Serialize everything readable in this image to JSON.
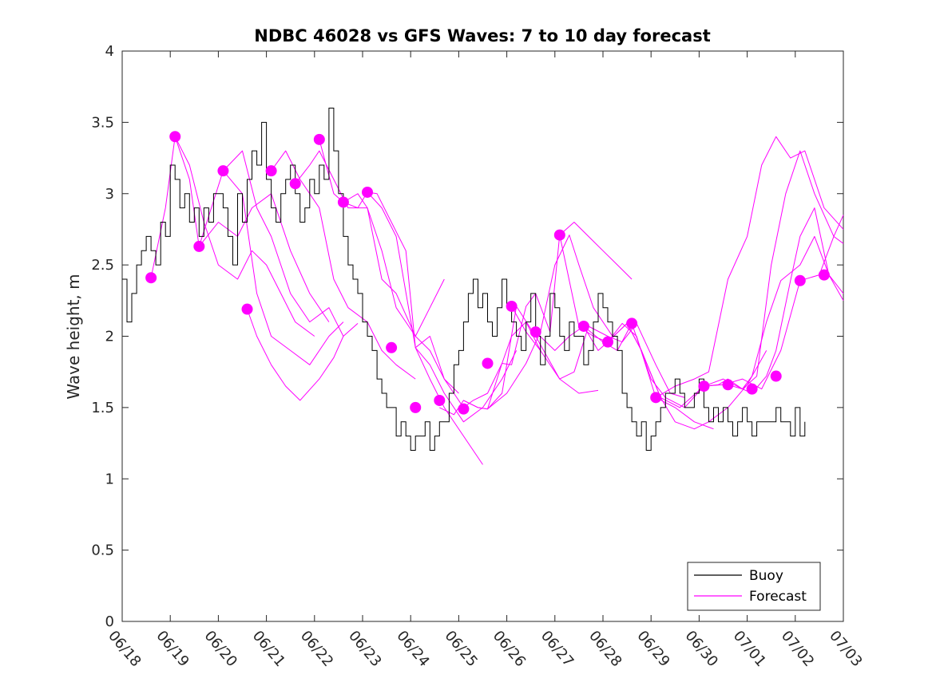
{
  "chart_data": {
    "type": "line",
    "title": "NDBC 46028 vs GFS Waves: 7 to 10 day forecast",
    "xlabel": "",
    "ylabel": "Wave height, m",
    "x_tick_labels": [
      "06/18",
      "06/19",
      "06/20",
      "06/21",
      "06/22",
      "06/23",
      "06/24",
      "06/25",
      "06/26",
      "06/27",
      "06/28",
      "06/29",
      "06/30",
      "07/01",
      "07/02",
      "07/03"
    ],
    "xlim_days": [
      0,
      15
    ],
    "ylim": [
      0,
      4
    ],
    "y_ticks": [
      "0",
      "0.5",
      "1",
      "1.5",
      "2",
      "2.5",
      "3",
      "3.5",
      "4"
    ],
    "grid": false,
    "legend_position": "bottom-right",
    "colors": {
      "buoy": "#000000",
      "forecast": "#ff00ff"
    },
    "series": [
      {
        "name": "Buoy",
        "color": "#000000",
        "x": [
          0.0,
          0.1,
          0.2,
          0.3,
          0.4,
          0.5,
          0.6,
          0.7,
          0.8,
          0.9,
          1.0,
          1.1,
          1.2,
          1.3,
          1.4,
          1.5,
          1.6,
          1.7,
          1.8,
          1.9,
          2.0,
          2.1,
          2.2,
          2.3,
          2.4,
          2.5,
          2.6,
          2.7,
          2.8,
          2.9,
          3.0,
          3.1,
          3.2,
          3.3,
          3.4,
          3.5,
          3.6,
          3.7,
          3.8,
          3.9,
          4.0,
          4.1,
          4.2,
          4.3,
          4.4,
          4.5,
          4.6,
          4.7,
          4.8,
          4.9,
          5.0,
          5.1,
          5.2,
          5.3,
          5.4,
          5.5,
          5.6,
          5.7,
          5.8,
          5.9,
          6.0,
          6.1,
          6.2,
          6.3,
          6.4,
          6.5,
          6.6,
          6.7,
          6.8,
          6.9,
          7.0,
          7.1,
          7.2,
          7.3,
          7.4,
          7.5,
          7.6,
          7.7,
          7.8,
          7.9,
          8.0,
          8.1,
          8.2,
          8.3,
          8.4,
          8.5,
          8.6,
          8.7,
          8.8,
          8.9,
          9.0,
          9.1,
          9.2,
          9.3,
          9.4,
          9.5,
          9.6,
          9.7,
          9.8,
          9.9,
          10.0,
          10.1,
          10.2,
          10.3,
          10.4,
          10.5,
          10.6,
          10.7,
          10.8,
          10.9,
          11.0,
          11.1,
          11.2,
          11.3,
          11.4,
          11.5,
          11.6,
          11.7,
          11.8,
          11.9,
          12.0,
          12.1,
          12.2,
          12.3,
          12.4,
          12.5,
          12.6,
          12.7,
          12.8,
          12.9,
          13.0,
          13.1,
          13.2,
          13.3,
          13.4,
          13.5,
          13.6,
          13.7,
          13.8,
          13.9,
          14.0,
          14.1,
          14.2
        ],
        "values": [
          2.4,
          2.1,
          2.3,
          2.5,
          2.6,
          2.7,
          2.6,
          2.5,
          2.8,
          2.7,
          3.2,
          3.1,
          2.9,
          3.0,
          2.8,
          2.9,
          2.7,
          2.9,
          2.8,
          3.0,
          3.0,
          2.9,
          2.7,
          2.5,
          3.0,
          2.8,
          3.1,
          3.3,
          3.2,
          3.5,
          3.1,
          2.9,
          2.8,
          3.0,
          3.1,
          3.2,
          3.0,
          2.8,
          2.9,
          3.1,
          3.0,
          3.2,
          3.1,
          3.6,
          3.3,
          3.0,
          2.7,
          2.5,
          2.4,
          2.3,
          2.1,
          2.0,
          1.9,
          1.7,
          1.6,
          1.5,
          1.5,
          1.3,
          1.4,
          1.3,
          1.2,
          1.3,
          1.3,
          1.4,
          1.2,
          1.3,
          1.4,
          1.4,
          1.6,
          1.8,
          1.9,
          2.1,
          2.3,
          2.4,
          2.2,
          2.3,
          2.1,
          2.0,
          2.2,
          2.4,
          2.2,
          2.1,
          2.0,
          1.9,
          2.1,
          2.3,
          2.0,
          1.8,
          2.0,
          2.3,
          2.2,
          2.0,
          1.9,
          2.1,
          2.0,
          2.0,
          1.8,
          1.9,
          2.1,
          2.3,
          2.2,
          2.1,
          2.0,
          1.9,
          1.6,
          1.5,
          1.4,
          1.3,
          1.4,
          1.2,
          1.3,
          1.4,
          1.5,
          1.6,
          1.6,
          1.7,
          1.6,
          1.5,
          1.5,
          1.6,
          1.7,
          1.5,
          1.4,
          1.5,
          1.4,
          1.5,
          1.4,
          1.3,
          1.4,
          1.5,
          1.4,
          1.3,
          1.4,
          1.4,
          1.4,
          1.4,
          1.5,
          1.4,
          1.4,
          1.3,
          1.5,
          1.3,
          1.4
        ]
      },
      {
        "name": "Forecast",
        "color": "#ff00ff",
        "runs": [
          {
            "x": [
              0.6,
              0.9,
              1.1,
              1.4,
              1.7,
              2.0,
              2.4,
              2.7,
              3.0,
              3.3,
              3.6,
              4.0
            ],
            "values": [
              2.41,
              2.9,
              3.4,
              3.2,
              2.8,
              2.5,
              2.4,
              2.6,
              2.5,
              2.3,
              2.1,
              2.0
            ]
          },
          {
            "x": [
              1.1,
              1.4,
              1.6,
              2.0,
              2.4,
              2.7,
              3.1,
              3.5,
              3.9,
              4.3
            ],
            "values": [
              3.4,
              3.1,
              2.63,
              2.8,
              2.7,
              2.9,
              3.0,
              2.6,
              2.3,
              2.1
            ]
          },
          {
            "x": [
              1.6,
              2.1,
              2.5,
              2.8,
              3.1,
              3.5,
              3.9,
              4.3,
              4.6
            ],
            "values": [
              2.63,
              3.16,
              3.3,
              2.9,
              2.7,
              2.3,
              2.1,
              2.2,
              2.0
            ]
          },
          {
            "x": [
              2.1,
              2.5,
              2.8,
              3.1,
              3.5,
              3.9,
              4.3,
              4.6
            ],
            "values": [
              3.16,
              3.0,
              2.3,
              2.0,
              1.9,
              1.8,
              2.0,
              2.1
            ]
          },
          {
            "x": [
              2.6,
              2.8,
              3.1,
              3.4,
              3.7,
              4.1,
              4.4,
              4.6,
              4.9
            ],
            "values": [
              2.19,
              2.0,
              1.8,
              1.65,
              1.55,
              1.7,
              1.85,
              2.0,
              2.09
            ]
          },
          {
            "x": [
              3.1,
              3.4,
              3.7,
              4.1,
              4.4,
              4.7,
              5.1,
              5.4,
              5.7,
              6.1
            ],
            "values": [
              3.16,
              3.3,
              3.1,
              2.9,
              2.4,
              2.2,
              2.1,
              1.9,
              1.8,
              1.7
            ]
          },
          {
            "x": [
              3.6,
              3.9,
              4.1,
              4.4,
              4.7,
              5.1,
              5.4,
              5.7,
              6.1,
              6.4,
              6.7
            ],
            "values": [
              3.07,
              3.2,
              3.3,
              3.1,
              2.9,
              2.9,
              2.6,
              2.2,
              2.0,
              2.2,
              2.4
            ]
          },
          {
            "x": [
              4.1,
              4.4,
              4.6,
              4.9,
              5.1,
              5.4,
              5.7,
              6.1,
              6.4,
              6.7,
              7.0
            ],
            "values": [
              3.38,
              3.0,
              2.94,
              3.0,
              2.9,
              2.4,
              2.3,
              2.0,
              1.9,
              1.7,
              1.6
            ]
          },
          {
            "x": [
              4.6,
              4.9,
              5.1,
              5.3,
              5.6,
              5.9,
              6.1,
              6.4,
              6.7,
              7.1,
              7.5
            ],
            "values": [
              2.94,
              2.9,
              3.01,
              3.0,
              2.8,
              2.6,
              1.92,
              1.7,
              1.5,
              1.3,
              1.1
            ]
          },
          {
            "x": [
              5.1,
              5.4,
              5.7,
              6.1,
              6.4,
              6.7,
              7.1,
              7.5,
              7.9,
              8.2
            ],
            "values": [
              3.01,
              2.9,
              2.7,
              1.92,
              1.8,
              1.6,
              1.4,
              1.5,
              1.7,
              1.9
            ]
          },
          {
            "x": [
              6.1,
              6.4,
              6.7,
              7.1,
              7.3,
              7.6,
              7.9,
              8.1,
              8.4,
              8.7
            ],
            "values": [
              1.92,
              2.0,
              1.7,
              1.5,
              1.55,
              1.6,
              1.81,
              2.0,
              2.1,
              1.9
            ]
          },
          {
            "x": [
              6.6,
              6.9,
              7.1,
              7.4,
              7.6,
              7.9,
              8.2,
              8.6,
              9.1,
              9.5,
              9.9
            ],
            "values": [
              1.5,
              1.45,
              1.55,
              1.5,
              1.49,
              1.6,
              2.21,
              2.0,
              1.7,
              1.6,
              1.62
            ]
          },
          {
            "x": [
              7.1,
              7.4,
              7.6,
              8.0,
              8.4,
              8.7,
              9.0,
              9.3,
              9.5,
              9.8,
              10.2
            ],
            "values": [
              1.55,
              1.5,
              1.49,
              1.6,
              1.81,
              2.03,
              2.5,
              2.71,
              2.5,
              2.2,
              2.0
            ]
          },
          {
            "x": [
              7.6,
              7.9,
              8.1,
              8.4,
              8.6,
              8.9,
              9.1,
              9.4,
              9.7,
              10.0,
              10.3,
              10.6
            ],
            "values": [
              1.49,
              1.81,
              1.8,
              2.21,
              2.3,
              2.03,
              2.71,
              2.8,
              2.7,
              2.6,
              2.5,
              2.4
            ]
          },
          {
            "x": [
              8.1,
              8.4,
              8.7,
              9.1,
              9.4,
              9.7,
              10.1,
              10.4,
              10.7,
              11.1,
              11.4,
              11.7
            ],
            "values": [
              2.21,
              2.03,
              1.9,
              1.7,
              1.75,
              2.07,
              2.0,
              1.96,
              2.09,
              1.8,
              1.6,
              1.57
            ]
          },
          {
            "x": [
              8.6,
              9.0,
              9.3,
              9.6,
              9.9,
              10.1,
              10.4,
              10.7,
              11.1,
              11.5,
              11.9,
              12.3
            ],
            "values": [
              2.03,
              1.9,
              2.0,
              2.07,
              1.9,
              1.96,
              2.09,
              2.0,
              1.57,
              1.5,
              1.4,
              1.35
            ]
          },
          {
            "x": [
              9.1,
              9.5,
              9.8,
              10.1,
              10.5,
              10.8,
              11.2,
              11.5,
              11.9,
              12.2,
              12.6,
              13.0,
              13.4
            ],
            "values": [
              2.71,
              2.07,
              2.0,
              1.96,
              2.09,
              1.9,
              1.57,
              1.4,
              1.35,
              1.4,
              1.5,
              1.66,
              1.9
            ]
          },
          {
            "x": [
              9.6,
              10.0,
              10.3,
              10.6,
              11.0,
              11.3,
              11.7,
              12.1,
              12.5,
              12.9,
              13.3,
              13.7,
              14.1,
              14.5,
              14.8,
              15.0
            ],
            "values": [
              2.07,
              1.96,
              1.9,
              2.09,
              1.7,
              1.57,
              1.5,
              1.65,
              1.66,
              1.7,
              1.63,
              1.9,
              2.39,
              2.43,
              2.7,
              2.85
            ]
          },
          {
            "x": [
              10.1,
              10.5,
              10.8,
              11.2,
              11.6,
              12.1,
              12.5,
              12.9,
              13.2,
              13.5,
              13.8,
              14.1,
              14.4,
              14.8,
              15.0
            ],
            "values": [
              1.96,
              2.09,
              1.9,
              1.57,
              1.5,
              1.65,
              1.7,
              1.63,
              1.72,
              2.5,
              3.0,
              3.3,
              3.0,
              2.7,
              2.65
            ]
          },
          {
            "x": [
              11.1,
              11.5,
              11.9,
              12.2,
              12.6,
              13.0,
              13.3,
              13.6,
              13.9,
              14.2,
              14.6,
              15.0
            ],
            "values": [
              1.57,
              1.65,
              1.7,
              1.75,
              2.4,
              2.7,
              3.2,
              3.4,
              3.25,
              3.3,
              2.9,
              2.75
            ]
          },
          {
            "x": [
              12.1,
              12.4,
              12.6,
              12.9,
              13.1,
              13.4,
              13.7,
              14.1,
              14.4,
              14.7,
              15.0
            ],
            "values": [
              1.65,
              1.66,
              1.7,
              1.63,
              1.72,
              2.1,
              2.39,
              2.5,
              2.7,
              2.43,
              2.3
            ]
          },
          {
            "x": [
              12.6,
              12.9,
              13.1,
              13.4,
              13.6,
              13.9,
              14.1,
              14.4,
              14.7,
              15.0
            ],
            "values": [
              1.66,
              1.63,
              1.6,
              1.72,
              1.9,
              2.39,
              2.7,
              2.9,
              2.43,
              2.25
            ]
          }
        ],
        "markers": {
          "x": [
            0.6,
            1.1,
            1.6,
            2.1,
            2.6,
            3.1,
            3.6,
            4.1,
            4.6,
            5.1,
            5.6,
            6.1,
            6.6,
            7.1,
            7.6,
            8.1,
            8.6,
            9.1,
            9.6,
            10.1,
            10.6,
            11.1,
            12.1,
            12.6,
            13.1,
            13.6,
            14.1,
            14.6
          ],
          "values": [
            2.41,
            3.4,
            2.63,
            3.16,
            2.19,
            3.16,
            3.07,
            3.38,
            2.94,
            3.01,
            1.92,
            1.5,
            1.55,
            1.49,
            1.81,
            2.21,
            2.03,
            2.71,
            2.07,
            1.96,
            2.09,
            1.57,
            1.65,
            1.66,
            1.63,
            1.72,
            2.39,
            2.43
          ]
        }
      }
    ]
  },
  "legend": {
    "items": [
      {
        "label": "Buoy",
        "color": "#000000"
      },
      {
        "label": "Forecast",
        "color": "#ff00ff"
      }
    ]
  }
}
